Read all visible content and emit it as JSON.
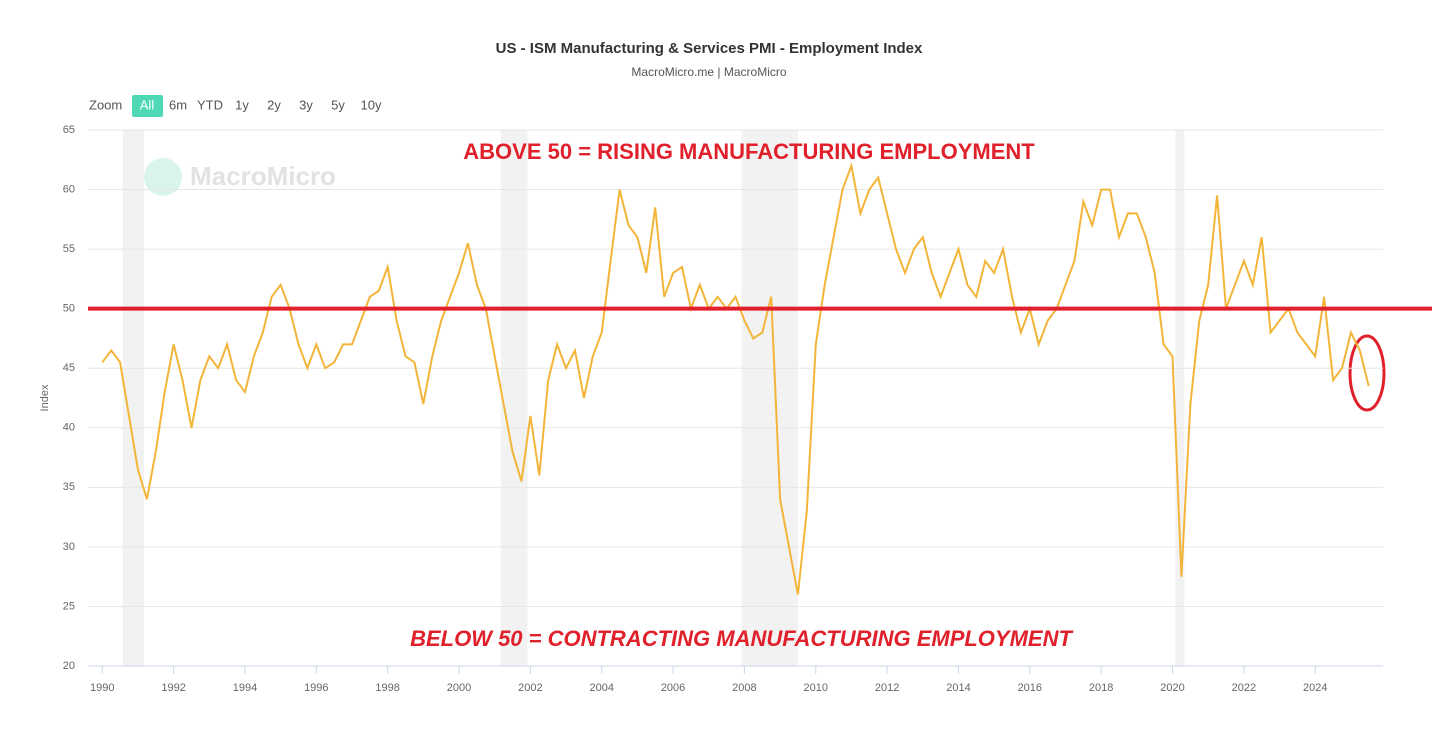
{
  "chart_data": {
    "type": "line",
    "title": "US - ISM Manufacturing & Services PMI - Employment Index",
    "subtitle": "MacroMicro.me | MacroMicro",
    "watermark": "MacroMicro",
    "y_label": "Index",
    "zoom": {
      "label": "Zoom",
      "buttons": [
        "All",
        "6m",
        "YTD",
        "1y",
        "2y",
        "3y",
        "5y",
        "10y"
      ],
      "selected": "All"
    },
    "annotations": [
      "ABOVE 50 = RISING MANUFACTURING EMPLOYMENT",
      "BELOW 50 = CONTRACTING MANUFACTURING EMPLOYMENT"
    ],
    "reference_line": 50,
    "reference_color": "#e0202a",
    "recessions": [
      [
        1990.58,
        1991.17
      ],
      [
        2001.17,
        2001.92
      ],
      [
        2007.92,
        2009.5
      ],
      [
        2020.08,
        2020.33
      ]
    ],
    "x": [
      1990,
      1990.25,
      1990.5,
      1990.75,
      1991,
      1991.25,
      1991.5,
      1991.75,
      1992,
      1992.25,
      1992.5,
      1992.75,
      1993,
      1993.25,
      1993.5,
      1993.75,
      1994,
      1994.25,
      1994.5,
      1994.75,
      1995,
      1995.25,
      1995.5,
      1995.75,
      1996,
      1996.25,
      1996.5,
      1996.75,
      1997,
      1997.25,
      1997.5,
      1997.75,
      1998,
      1998.25,
      1998.5,
      1998.75,
      1999,
      1999.25,
      1999.5,
      1999.75,
      2000,
      2000.25,
      2000.5,
      2000.75,
      2001,
      2001.25,
      2001.5,
      2001.75,
      2002,
      2002.25,
      2002.5,
      2002.75,
      2003,
      2003.25,
      2003.5,
      2003.75,
      2004,
      2004.25,
      2004.5,
      2004.75,
      2005,
      2005.25,
      2005.5,
      2005.75,
      2006,
      2006.25,
      2006.5,
      2006.75,
      2007,
      2007.25,
      2007.5,
      2007.75,
      2008,
      2008.25,
      2008.5,
      2008.75,
      2009,
      2009.25,
      2009.5,
      2009.75,
      2010,
      2010.25,
      2010.5,
      2010.75,
      2011,
      2011.25,
      2011.5,
      2011.75,
      2012,
      2012.25,
      2012.5,
      2012.75,
      2013,
      2013.25,
      2013.5,
      2013.75,
      2014,
      2014.25,
      2014.5,
      2014.75,
      2015,
      2015.25,
      2015.5,
      2015.75,
      2016,
      2016.25,
      2016.5,
      2016.75,
      2017,
      2017.25,
      2017.5,
      2017.75,
      2018,
      2018.25,
      2018.5,
      2018.75,
      2019,
      2019.25,
      2019.5,
      2019.75,
      2020,
      2020.25,
      2020.5,
      2020.75,
      2021,
      2021.25,
      2021.5,
      2021.75,
      2022,
      2022.25,
      2022.5,
      2022.75,
      2023,
      2023.25,
      2023.5,
      2023.75,
      2024,
      2024.25,
      2024.5,
      2024.75,
      2025,
      2025.25,
      2025.5
    ],
    "series": [
      {
        "name": "Employment Index",
        "color": "#f2b53a",
        "values": [
          45.5,
          46.5,
          45.5,
          41,
          36.5,
          34,
          38,
          43,
          47,
          44,
          40,
          44,
          46,
          45,
          47,
          44,
          43,
          46,
          48,
          51,
          52,
          50,
          47,
          45,
          47,
          45,
          45.5,
          47,
          47,
          49,
          51,
          51.5,
          53.5,
          49,
          46,
          45.5,
          42,
          46,
          49,
          51,
          53,
          55.5,
          52,
          50,
          46,
          42,
          38,
          35.5,
          41,
          36,
          44,
          47,
          45,
          46.5,
          42.5,
          46,
          48,
          54,
          60,
          57,
          56,
          53,
          58.5,
          51,
          53,
          53.5,
          50,
          52,
          50,
          51,
          50,
          51,
          49,
          47.5,
          48,
          51,
          34,
          30,
          26,
          33,
          47,
          52,
          56,
          60,
          62,
          58,
          60,
          61,
          58,
          55,
          53,
          55,
          56,
          53,
          51,
          53,
          55,
          52,
          51,
          54,
          53,
          55,
          51,
          48,
          50,
          47,
          49,
          50,
          52,
          54,
          59,
          57,
          60,
          60,
          56,
          58,
          58,
          56,
          53,
          47,
          46,
          27.5,
          42,
          49,
          52,
          59.5,
          50,
          52,
          54,
          52,
          56,
          48,
          49,
          50,
          48,
          47,
          46,
          51,
          44,
          45,
          48,
          46.5,
          43.5
        ]
      }
    ],
    "xlim": [
      1989.6,
      2025.9
    ],
    "xticks": [
      1990,
      1992,
      1994,
      1996,
      1998,
      2000,
      2002,
      2004,
      2006,
      2008,
      2010,
      2012,
      2014,
      2016,
      2018,
      2020,
      2022,
      2024
    ],
    "ylim": [
      20,
      65
    ],
    "yticks": [
      20,
      25,
      30,
      35,
      40,
      45,
      50,
      55,
      60,
      65
    ],
    "grid": true
  }
}
